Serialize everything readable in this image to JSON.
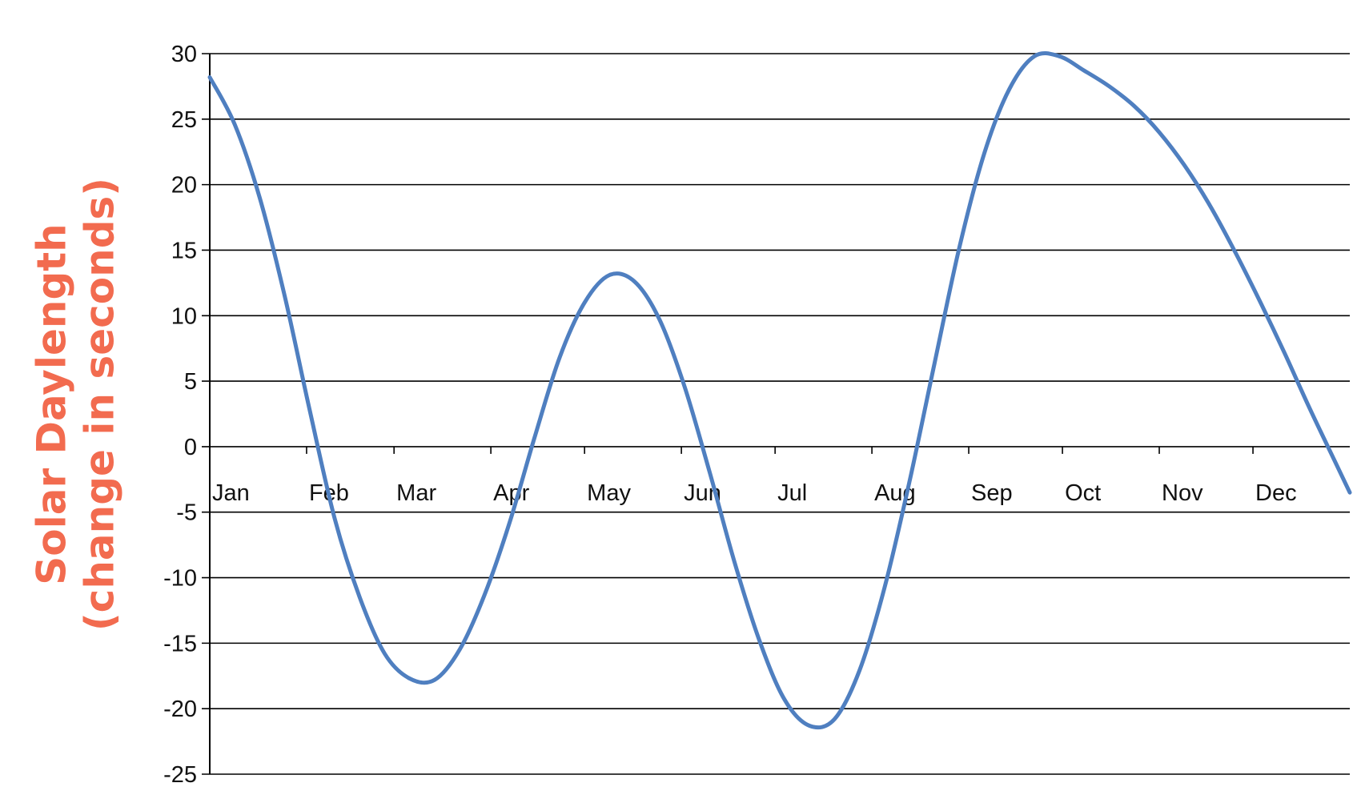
{
  "chart_data": {
    "type": "line",
    "ylabel_lines": [
      "Solar Daylength",
      "(change in seconds)"
    ],
    "ylabel_color": "#f26b4f",
    "line_color": "#4f7fc0",
    "grid_color": "#000000",
    "ylim": [
      -25,
      30
    ],
    "yticks": [
      30,
      25,
      20,
      15,
      10,
      5,
      0,
      -5,
      -10,
      -15,
      -20,
      -25
    ],
    "ytick_labels": [
      "30",
      "25",
      "20",
      "15",
      "10",
      "5",
      "0",
      "-5",
      "-10",
      "-15",
      "-20",
      "-25"
    ],
    "xlim_days": [
      0,
      365
    ],
    "xtick_days": [
      0,
      31,
      59,
      90,
      120,
      151,
      181,
      212,
      243,
      273,
      304,
      334
    ],
    "xtick_labels": [
      "Jan",
      "Feb",
      "Mar",
      "Apr",
      "May",
      "Jun",
      "Jul",
      "Aug",
      "Sep",
      "Oct",
      "Nov",
      "Dec"
    ],
    "grid": true,
    "series": [
      {
        "x_days": [
          0,
          8,
          16,
          24,
          32,
          40,
          48,
          56,
          64,
          72,
          80,
          88,
          96,
          104,
          112,
          120,
          128,
          136,
          144,
          152,
          160,
          168,
          176,
          184,
          192,
          200,
          208,
          216,
          224,
          232,
          240,
          248,
          256,
          264,
          272,
          280,
          288,
          296,
          304,
          312,
          320,
          328,
          336,
          344,
          352,
          360,
          365
        ],
        "values": [
          28.2,
          24.6,
          19.0,
          11.5,
          2.8,
          -5.5,
          -11.5,
          -15.8,
          -17.7,
          -17.8,
          -15.5,
          -11.3,
          -5.8,
          0.7,
          6.8,
          11.0,
          13.1,
          12.6,
          9.7,
          4.6,
          -1.9,
          -8.8,
          -14.8,
          -19.3,
          -21.3,
          -20.8,
          -17.1,
          -10.8,
          -2.7,
          6.3,
          15.2,
          22.4,
          27.3,
          29.8,
          29.8,
          28.7,
          27.5,
          26.0,
          24.0,
          21.5,
          18.5,
          15.0,
          11.2,
          7.2,
          3.0,
          -1.0,
          -3.5
        ]
      }
    ]
  }
}
